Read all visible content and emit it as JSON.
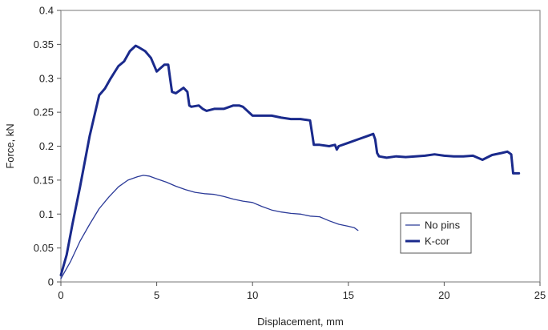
{
  "chart_data": {
    "type": "line",
    "title": "",
    "xlabel": "Displacement, mm",
    "ylabel": "Force, kN",
    "xlim": [
      0,
      25
    ],
    "ylim": [
      0,
      0.4
    ],
    "xticks": [
      0,
      5,
      10,
      15,
      20,
      25
    ],
    "yticks": [
      0,
      0.05,
      0.1,
      0.15,
      0.2,
      0.25,
      0.3,
      0.35,
      0.4
    ],
    "xtick_labels": [
      "0",
      "5",
      "10",
      "15",
      "20",
      "25"
    ],
    "ytick_labels": [
      "0",
      "0.05",
      "0.1",
      "0.15",
      "0.2",
      "0.25",
      "0.3",
      "0.35",
      "0.4"
    ],
    "grid": false,
    "legend_position": "right",
    "series": [
      {
        "name": "No pins",
        "color": "#2b3a98",
        "style": "thin",
        "x": [
          0,
          0.5,
          1,
          1.5,
          2,
          2.5,
          3,
          3.5,
          4,
          4.3,
          4.6,
          5,
          5.5,
          6,
          6.5,
          7,
          7.5,
          8,
          8.5,
          9,
          9.5,
          10,
          10.5,
          11,
          11.5,
          12,
          12.5,
          13,
          13.5,
          14,
          14.5,
          15,
          15.3,
          15.5
        ],
        "y": [
          0.005,
          0.03,
          0.06,
          0.085,
          0.108,
          0.125,
          0.14,
          0.15,
          0.155,
          0.157,
          0.156,
          0.152,
          0.147,
          0.141,
          0.136,
          0.132,
          0.13,
          0.129,
          0.126,
          0.122,
          0.119,
          0.117,
          0.111,
          0.106,
          0.103,
          0.101,
          0.1,
          0.097,
          0.096,
          0.09,
          0.085,
          0.082,
          0.08,
          0.076
        ]
      },
      {
        "name": "K-cor",
        "color": "#1a2a8c",
        "style": "thick",
        "x": [
          0,
          0.3,
          0.6,
          1,
          1.5,
          2,
          2.3,
          2.6,
          3,
          3.3,
          3.6,
          3.9,
          4.1,
          4.4,
          4.7,
          5,
          5.2,
          5.4,
          5.6,
          5.7,
          5.8,
          6,
          6.2,
          6.4,
          6.6,
          6.7,
          6.8,
          7.2,
          7.4,
          7.6,
          8,
          8.5,
          9,
          9.3,
          9.5,
          10,
          10.5,
          11,
          11.5,
          12,
          12.5,
          13,
          13.1,
          13.2,
          13.5,
          14,
          14.3,
          14.4,
          14.5,
          15,
          15.5,
          16,
          16.3,
          16.4,
          16.5,
          16.6,
          17,
          17.5,
          18,
          18.5,
          19,
          19.5,
          20,
          20.5,
          21,
          21.5,
          22,
          22.5,
          23,
          23.3,
          23.5,
          23.6,
          23.7,
          23.9
        ],
        "y": [
          0.01,
          0.04,
          0.085,
          0.14,
          0.215,
          0.275,
          0.285,
          0.3,
          0.318,
          0.325,
          0.34,
          0.348,
          0.345,
          0.34,
          0.33,
          0.31,
          0.315,
          0.32,
          0.32,
          0.3,
          0.28,
          0.278,
          0.282,
          0.286,
          0.28,
          0.26,
          0.258,
          0.26,
          0.255,
          0.252,
          0.255,
          0.255,
          0.26,
          0.26,
          0.258,
          0.245,
          0.245,
          0.245,
          0.242,
          0.24,
          0.24,
          0.238,
          0.22,
          0.202,
          0.202,
          0.2,
          0.202,
          0.195,
          0.2,
          0.205,
          0.21,
          0.215,
          0.218,
          0.21,
          0.19,
          0.185,
          0.183,
          0.185,
          0.184,
          0.185,
          0.186,
          0.188,
          0.186,
          0.185,
          0.185,
          0.186,
          0.18,
          0.187,
          0.19,
          0.192,
          0.188,
          0.16,
          0.16,
          0.16
        ]
      }
    ]
  }
}
